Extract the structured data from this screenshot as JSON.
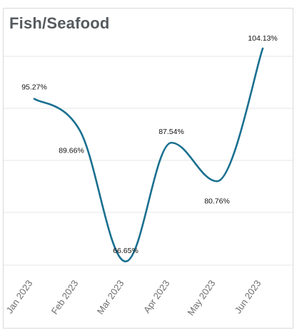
{
  "chart_data": {
    "type": "line",
    "title": "Fish/Seafood",
    "categories": [
      "Jan 2023",
      "Feb 2023",
      "Mar 2023",
      "Apr 2023",
      "May 2023",
      "Jun 2023"
    ],
    "series": [
      {
        "values": [
          95.27,
          89.66,
          66.65,
          87.54,
          80.76,
          104.13
        ],
        "labels": [
          "95.27%",
          "89.66%",
          "66.65%",
          "87.54%",
          "80.76%",
          "104.13%"
        ]
      }
    ],
    "ylim": [
      65,
      105
    ],
    "grid": true,
    "legend": "none",
    "colors": {
      "line": "#1a7090",
      "grid": "#e6e6e6"
    }
  }
}
